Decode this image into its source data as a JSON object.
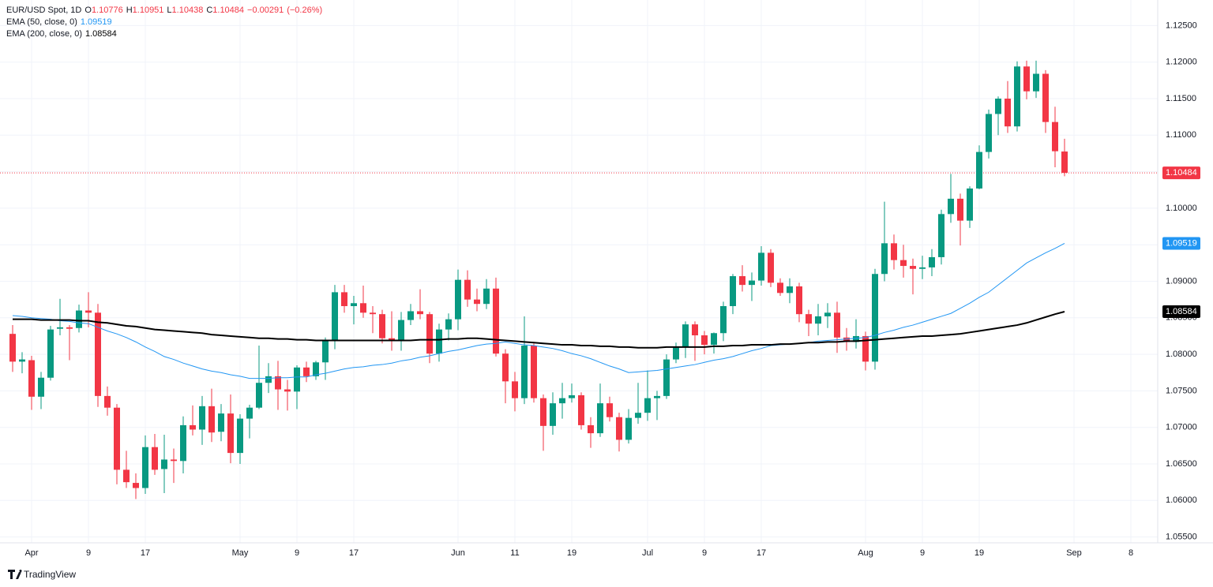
{
  "chart_data": {
    "type": "candlestick",
    "title": "EUR/USD Spot, 1D",
    "ohlc_letters": [
      "O",
      "H",
      "L",
      "C"
    ],
    "change": {
      "value": -0.00291,
      "label": "−0.00291"
    },
    "change_pct": {
      "value": -0.26,
      "label": "(−0.26%)"
    },
    "up_color": "#089981",
    "down_color": "#f23645",
    "brand": "TradingView",
    "grid": true,
    "ylim": [
      1.0542,
      1.1285
    ],
    "yticks": [
      {
        "value": 1.125,
        "label": "1.12500"
      },
      {
        "value": 1.12,
        "label": "1.12000"
      },
      {
        "value": 1.115,
        "label": "1.11500"
      },
      {
        "value": 1.11,
        "label": "1.11000"
      },
      {
        "value": 1.105,
        "label": "1.10500"
      },
      {
        "value": 1.1,
        "label": "1.10000"
      },
      {
        "value": 1.095,
        "label": "1.09500"
      },
      {
        "value": 1.09,
        "label": "1.09000"
      },
      {
        "value": 1.085,
        "label": "1.08500"
      },
      {
        "value": 1.08,
        "label": "1.08000"
      },
      {
        "value": 1.075,
        "label": "1.07500"
      },
      {
        "value": 1.07,
        "label": "1.07000"
      },
      {
        "value": 1.065,
        "label": "1.06500"
      },
      {
        "value": 1.06,
        "label": "1.06000"
      },
      {
        "value": 1.055,
        "label": "1.05500"
      }
    ],
    "xticks": [
      {
        "value": "Apr 1",
        "label": "Apr"
      },
      {
        "value": "Apr 9",
        "label": "9"
      },
      {
        "value": "Apr 17",
        "label": "17"
      },
      {
        "value": "May 1",
        "label": "May"
      },
      {
        "value": "May 9",
        "label": "9"
      },
      {
        "value": "May 17",
        "label": "17"
      },
      {
        "value": "Jun 3",
        "label": "Jun"
      },
      {
        "value": "Jun 11",
        "label": "11"
      },
      {
        "value": "Jun 19",
        "label": "19"
      },
      {
        "value": "Jul 1",
        "label": "Jul"
      },
      {
        "value": "Jul 9",
        "label": "9"
      },
      {
        "value": "Jul 17",
        "label": "17"
      },
      {
        "value": "Aug 1",
        "label": "Aug"
      },
      {
        "value": "Aug 9",
        "label": "9"
      },
      {
        "value": "Aug 19",
        "label": "19"
      },
      {
        "value": "Sep 2",
        "label": "Sep"
      },
      {
        "value": "Sep 8",
        "label": "8"
      }
    ],
    "categories": [
      "Mar 28",
      "Mar 29",
      "Apr 1",
      "Apr 2",
      "Apr 3",
      "Apr 4",
      "Apr 5",
      "Apr 8",
      "Apr 9",
      "Apr 10",
      "Apr 11",
      "Apr 12",
      "Apr 15",
      "Apr 16",
      "Apr 17",
      "Apr 18",
      "Apr 19",
      "Apr 22",
      "Apr 23",
      "Apr 24",
      "Apr 25",
      "Apr 26",
      "Apr 29",
      "Apr 30",
      "May 1",
      "May 2",
      "May 3",
      "May 6",
      "May 7",
      "May 8",
      "May 9",
      "May 10",
      "May 13",
      "May 14",
      "May 15",
      "May 16",
      "May 17",
      "May 20",
      "May 21",
      "May 22",
      "May 23",
      "May 24",
      "May 27",
      "May 28",
      "May 29",
      "May 30",
      "May 31",
      "Jun 3",
      "Jun 4",
      "Jun 5",
      "Jun 6",
      "Jun 7",
      "Jun 10",
      "Jun 11",
      "Jun 12",
      "Jun 13",
      "Jun 14",
      "Jun 17",
      "Jun 18",
      "Jun 19",
      "Jun 20",
      "Jun 21",
      "Jun 24",
      "Jun 25",
      "Jun 26",
      "Jun 27",
      "Jun 28",
      "Jul 1",
      "Jul 2",
      "Jul 3",
      "Jul 4",
      "Jul 5",
      "Jul 8",
      "Jul 9",
      "Jul 10",
      "Jul 11",
      "Jul 12",
      "Jul 15",
      "Jul 16",
      "Jul 17",
      "Jul 18",
      "Jul 19",
      "Jul 22",
      "Jul 23",
      "Jul 24",
      "Jul 25",
      "Jul 26",
      "Jul 29",
      "Jul 30",
      "Jul 31",
      "Aug 1",
      "Aug 2",
      "Aug 5",
      "Aug 6",
      "Aug 7",
      "Aug 8",
      "Aug 9",
      "Aug 12",
      "Aug 13",
      "Aug 14",
      "Aug 15",
      "Aug 16",
      "Aug 19",
      "Aug 20",
      "Aug 21",
      "Aug 22",
      "Aug 23",
      "Aug 26",
      "Aug 27",
      "Aug 28",
      "Aug 29",
      "Aug 30",
      "Sep 2",
      "Sep 3",
      "Sep 4",
      "Sep 5",
      "Sep 6",
      "Sep 7",
      "Sep 8",
      "Sep 9"
    ],
    "open": [
      1.0828,
      1.079,
      1.0792,
      1.0742,
      1.0768,
      1.0835,
      1.0837,
      1.0836,
      1.086,
      1.0857,
      1.0743,
      1.0727,
      1.0642,
      1.0624,
      1.0617,
      1.0673,
      1.0643,
      1.0656,
      1.0654,
      1.0703,
      1.0697,
      1.0729,
      1.0694,
      1.0719,
      1.0665,
      1.0712,
      1.0727,
      1.0761,
      1.077,
      1.0752,
      1.0749,
      1.0782,
      1.077,
      1.0789,
      1.0818,
      1.0885,
      1.0866,
      1.087,
      1.0857,
      1.0855,
      1.0822,
      1.0818,
      1.0847,
      1.0859,
      1.0855,
      1.0801,
      1.0834,
      1.0848,
      1.0902,
      1.0875,
      1.0869,
      1.089,
      1.0801,
      1.0763,
      1.074,
      1.0812,
      1.074,
      1.0702,
      1.0733,
      1.074,
      1.0744,
      1.0703,
      1.0692,
      1.0733,
      1.0714,
      1.0683,
      1.0713,
      1.072,
      1.074,
      1.0743,
      1.0793,
      1.081,
      1.0841,
      1.0826,
      1.0813,
      1.0829,
      1.0866,
      1.0907,
      1.0895,
      1.0901,
      1.0939,
      1.0898,
      1.0884,
      1.0893,
      1.0855,
      1.0842,
      1.0852,
      1.0857,
      1.0823,
      1.0817,
      1.0825,
      1.079,
      1.091,
      1.0952,
      1.0929,
      1.0921,
      1.0917,
      1.0919,
      1.0933,
      1.0992,
      1.1013,
      1.0983,
      1.1027,
      1.1077,
      1.1129,
      1.115,
      1.1112,
      1.1194,
      1.116,
      1.1184,
      1.1118,
      1.10776,
      null,
      null,
      null,
      null,
      null,
      null,
      null,
      null
    ],
    "high": [
      1.084,
      1.0803,
      1.0798,
      1.0776,
      1.0839,
      1.0876,
      1.084,
      1.0868,
      1.0885,
      1.0869,
      1.0756,
      1.0732,
      1.0668,
      1.0637,
      1.0689,
      1.0691,
      1.069,
      1.0671,
      1.0715,
      1.073,
      1.0743,
      1.0753,
      1.0732,
      1.0745,
      1.0718,
      1.0731,
      1.0812,
      1.0788,
      1.0791,
      1.0765,
      1.0785,
      1.079,
      1.0791,
      1.0823,
      1.0895,
      1.0895,
      1.088,
      1.0894,
      1.0866,
      1.0861,
      1.0859,
      1.0858,
      1.0869,
      1.0889,
      1.0858,
      1.0842,
      1.0856,
      1.0916,
      1.0915,
      1.089,
      1.0903,
      1.0905,
      1.0807,
      1.0776,
      1.0852,
      1.0815,
      1.0745,
      1.0748,
      1.0761,
      1.076,
      1.0748,
      1.0714,
      1.076,
      1.0742,
      1.072,
      1.0725,
      1.0761,
      1.0778,
      1.075,
      1.08,
      1.0816,
      1.0845,
      1.0845,
      1.0832,
      1.083,
      1.0872,
      1.091,
      1.0922,
      1.0912,
      1.0948,
      1.0944,
      1.0904,
      1.0904,
      1.0898,
      1.0861,
      1.0869,
      1.087,
      1.0872,
      1.0836,
      1.0848,
      1.0831,
      1.0917,
      1.1009,
      1.0964,
      1.095,
      1.0931,
      1.0935,
      1.0944,
      1.0998,
      1.1047,
      1.102,
      1.103,
      1.1086,
      1.1135,
      1.1153,
      1.1174,
      1.1201,
      1.1202,
      1.1202,
      1.1189,
      1.1139,
      1.10951,
      null,
      null,
      null,
      null,
      null,
      null,
      null,
      null
    ],
    "low": [
      1.0776,
      1.0774,
      1.0724,
      1.0725,
      1.0764,
      1.0826,
      1.0792,
      1.083,
      1.0837,
      1.0728,
      1.0716,
      1.0622,
      1.0617,
      1.0602,
      1.0609,
      1.0635,
      1.061,
      1.0624,
      1.0637,
      1.0689,
      1.0676,
      1.068,
      1.0681,
      1.0651,
      1.065,
      1.0685,
      1.0725,
      1.0747,
      1.0724,
      1.0723,
      1.0725,
      1.0762,
      1.0765,
      1.0765,
      1.0807,
      1.0857,
      1.0841,
      1.085,
      1.0829,
      1.0815,
      1.0805,
      1.0805,
      1.084,
      1.0848,
      1.0788,
      1.079,
      1.0819,
      1.0833,
      1.0865,
      1.0859,
      1.0862,
      1.0797,
      1.0733,
      1.0722,
      1.0732,
      1.0734,
      1.0668,
      1.069,
      1.0712,
      1.0734,
      1.0697,
      1.0672,
      1.0687,
      1.0708,
      1.0667,
      1.0678,
      1.0705,
      1.0709,
      1.071,
      1.0739,
      1.0788,
      1.0795,
      1.0791,
      1.08,
      1.0801,
      1.0818,
      1.0855,
      1.0886,
      1.0873,
      1.0894,
      1.0892,
      1.088,
      1.087,
      1.0844,
      1.0825,
      1.0826,
      1.0836,
      1.0802,
      1.0805,
      1.0808,
      1.0778,
      1.0779,
      1.09,
      1.0916,
      1.0905,
      1.0882,
      1.0903,
      1.0907,
      1.0923,
      1.098,
      1.0949,
      1.0973,
      1.1026,
      1.1068,
      1.11,
      1.1103,
      1.1105,
      1.1149,
      1.1151,
      1.1103,
      1.1056,
      1.10438,
      null,
      null,
      null,
      null,
      null,
      null,
      null,
      null
    ],
    "close": [
      1.079,
      1.0793,
      1.0742,
      1.0768,
      1.0834,
      1.0837,
      1.0835,
      1.086,
      1.0857,
      1.0743,
      1.0727,
      1.0642,
      1.0625,
      1.0617,
      1.0673,
      1.0642,
      1.0656,
      1.0654,
      1.0703,
      1.0697,
      1.0729,
      1.0693,
      1.0719,
      1.0665,
      1.0712,
      1.0727,
      1.0761,
      1.077,
      1.0752,
      1.0749,
      1.0782,
      1.077,
      1.0789,
      1.0818,
      1.0885,
      1.0866,
      1.087,
      1.0857,
      1.0855,
      1.0822,
      1.0818,
      1.0847,
      1.0859,
      1.0855,
      1.0801,
      1.0834,
      1.0848,
      1.0902,
      1.0875,
      1.0869,
      1.089,
      1.0801,
      1.0763,
      1.074,
      1.0812,
      1.074,
      1.0702,
      1.0733,
      1.074,
      1.0744,
      1.0703,
      1.0692,
      1.0733,
      1.0714,
      1.0683,
      1.0713,
      1.072,
      1.074,
      1.0743,
      1.0793,
      1.081,
      1.0841,
      1.0826,
      1.0813,
      1.0829,
      1.0866,
      1.0907,
      1.0895,
      1.0901,
      1.0939,
      1.0898,
      1.0884,
      1.0893,
      1.0855,
      1.0842,
      1.0852,
      1.0857,
      1.0823,
      1.0817,
      1.0825,
      1.079,
      1.091,
      1.0952,
      1.0929,
      1.0921,
      1.0917,
      1.0919,
      1.0933,
      1.0992,
      1.1013,
      1.0983,
      1.1027,
      1.1077,
      1.1129,
      1.115,
      1.1112,
      1.1194,
      1.116,
      1.1184,
      1.1118,
      1.1078,
      1.10484,
      null,
      null,
      null,
      null,
      null,
      null,
      null,
      null
    ],
    "overlays": [
      {
        "name": "EMA (50, close, 0)",
        "color": "#2196f3",
        "width": 1,
        "values": [
          1.0853,
          1.0852,
          1.085,
          1.0849,
          1.0848,
          1.0846,
          1.0845,
          1.0843,
          1.0842,
          1.0837,
          1.0832,
          1.0828,
          1.0823,
          1.0817,
          1.081,
          1.0804,
          1.0797,
          1.0793,
          1.0788,
          1.0784,
          1.078,
          1.0777,
          1.0775,
          1.0772,
          1.077,
          1.0767,
          1.0767,
          1.0767,
          1.0768,
          1.0768,
          1.0769,
          1.0769,
          1.0772,
          1.0774,
          1.0777,
          1.078,
          1.0782,
          1.0783,
          1.0785,
          1.0786,
          1.0788,
          1.0791,
          1.0793,
          1.0796,
          1.0798,
          1.0801,
          1.0804,
          1.0806,
          1.0809,
          1.0812,
          1.0814,
          1.0815,
          1.0817,
          1.0815,
          1.0813,
          1.0812,
          1.081,
          1.0808,
          1.0805,
          1.0801,
          1.0798,
          1.0794,
          1.0789,
          1.0784,
          1.078,
          1.0775,
          1.0776,
          1.0777,
          1.0778,
          1.078,
          1.0782,
          1.0784,
          1.0786,
          1.0789,
          1.0792,
          1.0794,
          1.0797,
          1.0801,
          1.0805,
          1.0808,
          1.0812,
          1.0813,
          1.0814,
          1.0815,
          1.0816,
          1.0818,
          1.0819,
          1.082,
          1.0821,
          1.0822,
          1.0823,
          1.0826,
          1.083,
          1.0833,
          1.0837,
          1.084,
          1.0844,
          1.0848,
          1.0852,
          1.0856,
          1.0863,
          1.087,
          1.0878,
          1.0885,
          1.0895,
          1.0905,
          1.0915,
          1.0925,
          1.0932,
          1.0939,
          1.0945,
          1.09519,
          null,
          null,
          null,
          null,
          null,
          null,
          null,
          null
        ]
      },
      {
        "name": "EMA (200, close, 0)",
        "color": "#000000",
        "width": 2,
        "values": [
          1.0848,
          1.0848,
          1.0848,
          1.0847,
          1.0847,
          1.0847,
          1.0847,
          1.0846,
          1.0846,
          1.0844,
          1.0843,
          1.0841,
          1.0839,
          1.0838,
          1.0836,
          1.0834,
          1.0833,
          1.0832,
          1.0831,
          1.083,
          1.0829,
          1.0827,
          1.0826,
          1.0825,
          1.0824,
          1.0823,
          1.0822,
          1.0822,
          1.0821,
          1.0821,
          1.082,
          1.082,
          1.0819,
          1.0819,
          1.0819,
          1.0819,
          1.0819,
          1.0819,
          1.0819,
          1.0819,
          1.0819,
          1.0819,
          1.0819,
          1.082,
          1.082,
          1.082,
          1.0821,
          1.0821,
          1.0822,
          1.0822,
          1.0821,
          1.082,
          1.0819,
          1.0818,
          1.0817,
          1.0816,
          1.0815,
          1.0814,
          1.0813,
          1.0813,
          1.0812,
          1.0812,
          1.0811,
          1.0811,
          1.081,
          1.081,
          1.0809,
          1.0809,
          1.0809,
          1.081,
          1.081,
          1.081,
          1.081,
          1.081,
          1.0811,
          1.0811,
          1.0812,
          1.0812,
          1.0813,
          1.0813,
          1.0813,
          1.0814,
          1.0814,
          1.0815,
          1.0816,
          1.0816,
          1.0817,
          1.0817,
          1.0818,
          1.0818,
          1.0819,
          1.082,
          1.0821,
          1.0822,
          1.0823,
          1.0824,
          1.0825,
          1.0825,
          1.0826,
          1.0827,
          1.0828,
          1.083,
          1.0832,
          1.0834,
          1.0836,
          1.0838,
          1.084,
          1.0843,
          1.0847,
          1.0851,
          1.0855,
          1.08584,
          null,
          null,
          null,
          null,
          null,
          null,
          null,
          null
        ]
      }
    ]
  }
}
